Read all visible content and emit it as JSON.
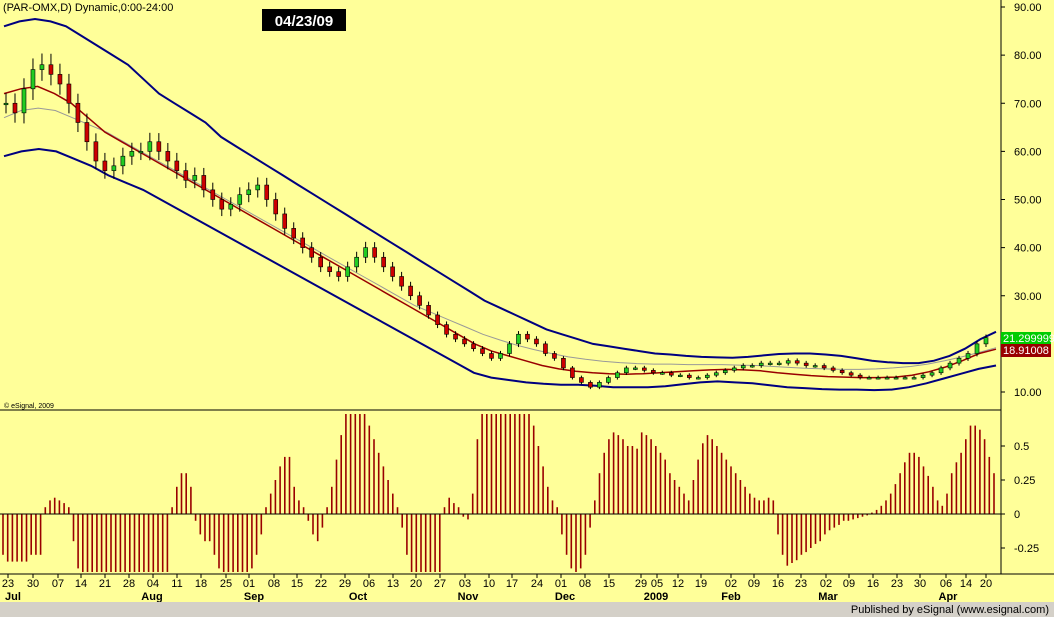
{
  "header": {
    "symbol_title": "(PAR-OMX,D) Dynamic,0:00-24:00",
    "date_badge": "04/23/09",
    "copyright": "© eSignal, 2009",
    "footer": "Published by eSignal (www.esignal.com)"
  },
  "price_labels": {
    "last": "21.299999",
    "ma": "18.91008"
  },
  "colors": {
    "background": "#ffff99",
    "up_candle": "#22cc22",
    "down_candle": "#cc0000",
    "band": "#000080",
    "ma_red": "#990000",
    "ma_gray": "#999999",
    "histogram": "#990000",
    "last_price_bg": "#00cc00",
    "ma_price_bg": "#990000"
  },
  "chart_data": [
    {
      "type": "candlestick",
      "title": "",
      "ylim": [
        5,
        90
      ],
      "y_ticks": [
        "90.00",
        "80.00",
        "70.00",
        "60.00",
        "50.00",
        "40.00",
        "30.00",
        "20.00",
        "10.00"
      ],
      "x_tick_labels": [
        "23",
        "30",
        "07",
        "14",
        "21",
        "28",
        "04",
        "11",
        "18",
        "25",
        "01",
        "08",
        "15",
        "22",
        "29",
        "06",
        "13",
        "20",
        "27",
        "03",
        "10",
        "17",
        "24",
        "01",
        "08",
        "15",
        "29",
        "05",
        "12",
        "19",
        "02",
        "09",
        "16",
        "23",
        "02",
        "09",
        "16",
        "23",
        "30",
        "06",
        "14",
        "20"
      ],
      "month_labels": [
        "Jul",
        "Aug",
        "Sep",
        "Oct",
        "Nov",
        "Dec",
        "2009",
        "Feb",
        "Mar",
        "Apr"
      ],
      "close_approx": [
        70,
        68,
        73,
        77,
        78,
        76,
        74,
        70,
        66,
        62,
        58,
        56,
        57,
        59,
        60,
        60,
        62,
        60,
        58,
        56,
        54,
        55,
        52,
        50,
        48,
        49,
        51,
        52,
        53,
        50,
        47,
        44,
        42,
        40,
        38,
        36,
        35,
        34,
        36,
        38,
        40,
        38,
        36,
        34,
        32,
        30,
        28,
        26,
        24,
        22,
        21,
        20,
        19,
        18,
        17,
        18,
        20,
        22,
        21,
        20,
        18,
        17,
        15,
        13,
        12,
        11,
        12,
        13,
        14,
        15,
        15,
        14.5,
        14,
        14,
        13.5,
        13.5,
        13,
        13,
        13.5,
        14,
        14.5,
        15,
        15.5,
        15.5,
        16,
        16,
        16,
        16.5,
        16,
        15.5,
        15.5,
        15,
        14.5,
        14,
        13.5,
        13,
        13,
        13,
        13,
        13,
        13,
        13,
        13.5,
        14,
        15,
        16,
        17,
        18,
        20,
        21.3
      ],
      "upper_band_approx": [
        86,
        87,
        87.5,
        87,
        86,
        84,
        82,
        80,
        78,
        75,
        72,
        70,
        68,
        66,
        63,
        61,
        59,
        57,
        55,
        53,
        51,
        49,
        47,
        45,
        43,
        41,
        39,
        37,
        35,
        33,
        31,
        29,
        27.5,
        26,
        24.5,
        23,
        22,
        21,
        20,
        19.5,
        19,
        18.5,
        18,
        17.8,
        17.5,
        17.3,
        17.2,
        17.1,
        17.3,
        17.6,
        17.9,
        18,
        18,
        17.8,
        17.5,
        17,
        16.5,
        16.2,
        16,
        16,
        16.5,
        17.5,
        19,
        21,
        22.5
      ],
      "lower_band_approx": [
        59,
        60,
        60.5,
        60,
        58.5,
        57,
        55,
        53.5,
        52,
        50,
        48,
        46,
        44,
        42,
        40,
        38,
        36,
        34,
        32,
        30,
        28,
        26,
        24,
        22,
        20,
        18,
        16,
        14,
        13,
        12.5,
        12,
        11.7,
        11.5,
        11.5,
        11.3,
        11,
        11,
        11,
        11.2,
        11.6,
        12,
        12.2,
        12,
        11.8,
        11.4,
        11,
        10.8,
        10.6,
        10.5,
        10.5,
        10.4,
        10.5,
        11,
        11.8,
        12.8,
        13.8,
        14.8,
        15.5
      ],
      "ma_red_approx": [
        72,
        73,
        73.5,
        72,
        70,
        67,
        64,
        62,
        60,
        58,
        56,
        54,
        52,
        50,
        48,
        46,
        44,
        42,
        40,
        38,
        36,
        34,
        32,
        30,
        28,
        26,
        24,
        22,
        20,
        18.5,
        17.5,
        16.5,
        15.5,
        14.8,
        14.3,
        14,
        13.8,
        13.7,
        13.8,
        14,
        14.2,
        14.4,
        14.6,
        14.7,
        14.6,
        14.4,
        14,
        13.7,
        13.4,
        13.2,
        13.1,
        13,
        13,
        13.1,
        13.5,
        14.2,
        15.2,
        16.5,
        18,
        18.9
      ],
      "ma_gray_approx": [
        67,
        68.5,
        69,
        68.5,
        67,
        65.5,
        64,
        62,
        60,
        58,
        56,
        54,
        52,
        50,
        48,
        46,
        44,
        42,
        40,
        38,
        36,
        34,
        32,
        30,
        28,
        26.5,
        25,
        23.5,
        22,
        20.8,
        19.7,
        18.8,
        18,
        17.3,
        16.8,
        16.4,
        16.1,
        15.9,
        15.8,
        15.8,
        15.7,
        15.7,
        15.7,
        15.6,
        15.5,
        15.3,
        15.1,
        14.9,
        14.8,
        14.7,
        14.7,
        14.8,
        15,
        15.3,
        15.8,
        16.5,
        17.3,
        18.2,
        19.2
      ]
    },
    {
      "type": "bar",
      "title": "",
      "ylim": [
        -0.45,
        0.75
      ],
      "y_ticks": [
        "0.5",
        "0.25",
        "0",
        "-0.25"
      ],
      "values": [
        -0.3,
        -0.35,
        -0.35,
        -0.35,
        -0.35,
        -0.35,
        -0.3,
        -0.3,
        -0.3,
        0.05,
        0.1,
        0.12,
        0.1,
        0.08,
        0.05,
        -0.2,
        -0.4,
        -0.45,
        -0.45,
        -0.45,
        -0.45,
        -0.45,
        -0.45,
        -0.45,
        -0.45,
        -0.45,
        -0.45,
        -0.45,
        -0.45,
        -0.45,
        -0.45,
        -0.45,
        -0.45,
        -0.45,
        -0.45,
        -0.45,
        0.05,
        0.2,
        0.3,
        0.3,
        0.2,
        -0.05,
        -0.15,
        -0.2,
        -0.2,
        -0.3,
        -0.4,
        -0.45,
        -0.45,
        -0.45,
        -0.45,
        -0.45,
        -0.45,
        -0.4,
        -0.3,
        -0.15,
        0.05,
        0.15,
        0.25,
        0.35,
        0.42,
        0.42,
        0.2,
        0.1,
        0.05,
        -0.05,
        -0.15,
        -0.2,
        -0.1,
        0.05,
        0.2,
        0.4,
        0.58,
        0.75,
        0.75,
        0.75,
        0.75,
        0.75,
        0.65,
        0.55,
        0.45,
        0.35,
        0.25,
        0.15,
        0.05,
        -0.1,
        -0.3,
        -0.45,
        -0.45,
        -0.45,
        -0.45,
        -0.45,
        -0.45,
        -0.45,
        0.05,
        0.12,
        0.08,
        0.05,
        -0.02,
        -0.04,
        0.15,
        0.55,
        0.75,
        0.75,
        0.75,
        0.75,
        0.75,
        0.75,
        0.75,
        0.75,
        0.75,
        0.75,
        0.75,
        0.65,
        0.5,
        0.35,
        0.2,
        0.1,
        0.05,
        -0.15,
        -0.3,
        -0.4,
        -0.45,
        -0.4,
        -0.3,
        -0.1,
        0.1,
        0.3,
        0.45,
        0.55,
        0.6,
        0.58,
        0.55,
        0.5,
        0.5,
        0.48,
        0.6,
        0.58,
        0.55,
        0.5,
        0.45,
        0.4,
        0.3,
        0.25,
        0.2,
        0.15,
        0.1,
        0.25,
        0.4,
        0.52,
        0.58,
        0.55,
        0.5,
        0.45,
        0.4,
        0.35,
        0.3,
        0.25,
        0.2,
        0.15,
        0.12,
        0.1,
        0.1,
        0.12,
        0.1,
        -0.15,
        -0.3,
        -0.38,
        -0.36,
        -0.34,
        -0.3,
        -0.28,
        -0.25,
        -0.22,
        -0.2,
        -0.15,
        -0.12,
        -0.1,
        -0.08,
        -0.05,
        -0.05,
        -0.04,
        -0.03,
        -0.02,
        -0.01,
        0.01,
        0.03,
        0.06,
        0.1,
        0.15,
        0.22,
        0.3,
        0.38,
        0.45,
        0.45,
        0.42,
        0.35,
        0.28,
        0.2,
        0.1,
        0.06,
        0.15,
        0.3,
        0.38,
        0.45,
        0.55,
        0.65,
        0.65,
        0.62,
        0.55,
        0.42,
        0.3
      ]
    }
  ]
}
